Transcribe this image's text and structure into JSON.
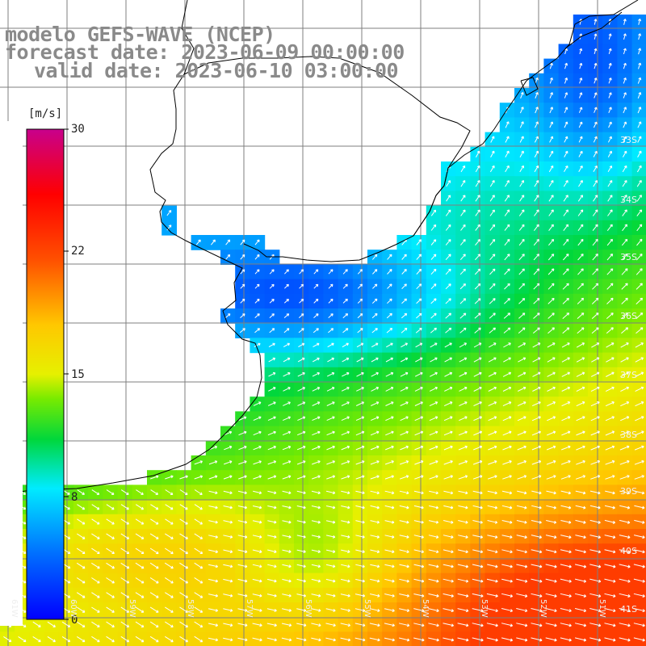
{
  "titles": {
    "model": "modelo GEFS-WAVE (NCEP)",
    "forecast": "forecast date: 2023-06-09 00:00:00",
    "valid": "valid date: 2023-06-10 03:00:00"
  },
  "colorbar": {
    "unit": "[m/s]",
    "ticks": [
      "30",
      "22",
      "15",
      "8",
      "0"
    ],
    "range": [
      0,
      30
    ]
  },
  "lat_labels": [
    "33S",
    "34S",
    "35S",
    "36S",
    "37S",
    "38S",
    "39S",
    "40S",
    "41S"
  ],
  "lon_labels": [
    "61W",
    "60W",
    "59W",
    "58W",
    "57W",
    "56W",
    "55W",
    "54W",
    "53W",
    "52W",
    "51W"
  ],
  "colors": {
    "land": "#ffffff",
    "grid": "#7f7f7f",
    "coast": "#000000",
    "arrow": "#ffffff",
    "title": "#8a8a8a"
  },
  "map_data": {
    "variable": "wind speed at 10 m",
    "units": "m/s",
    "region": "Rio de la Plata and southern Brazil / Uruguay coastal Atlantic",
    "lon_range": [
      -61.5,
      -50.5
    ],
    "lat_range": [
      -41.4,
      -30.5
    ],
    "wind_pattern": "northeasterly to southwesterly flow; strongest (17-22 m/s) in southeast, weakest (3-5 m/s) near Uruguay coast"
  }
}
